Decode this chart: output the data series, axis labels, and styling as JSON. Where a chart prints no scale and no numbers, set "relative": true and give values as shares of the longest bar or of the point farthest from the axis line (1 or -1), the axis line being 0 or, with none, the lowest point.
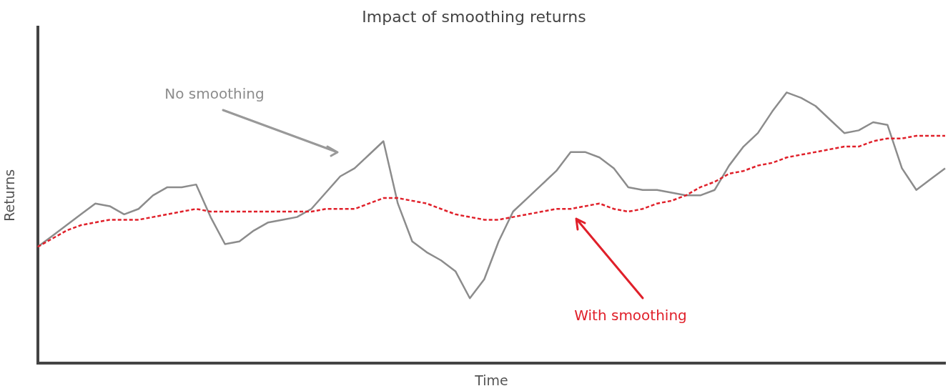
{
  "chart_data": {
    "type": "line",
    "title": "Impact of smoothing returns",
    "xlabel": "Time",
    "ylabel": "Returns",
    "relative": true,
    "legend": false,
    "grid": false,
    "marker": "none",
    "categories": [
      null,
      null,
      null,
      null,
      null,
      null,
      null,
      null,
      null,
      null,
      null,
      null,
      null,
      null,
      null,
      null,
      null,
      null,
      null,
      null,
      null,
      null,
      null,
      null,
      null,
      null,
      null,
      null,
      null,
      null,
      null,
      null,
      null,
      null,
      null,
      null,
      null,
      null,
      null,
      null,
      null,
      null,
      null,
      null,
      null,
      null,
      null,
      null,
      null,
      null,
      null,
      null,
      null,
      null,
      null,
      null,
      null,
      null,
      null,
      null,
      null,
      null,
      null,
      null
    ],
    "series": [
      {
        "name": "No smoothing",
        "color": "#8c8c8c",
        "line_style": "solid",
        "values": [
          0.43,
          0.47,
          0.51,
          0.55,
          0.59,
          0.58,
          0.55,
          0.57,
          0.62,
          0.65,
          0.65,
          0.66,
          0.54,
          0.44,
          0.45,
          0.49,
          0.52,
          0.53,
          0.54,
          0.57,
          0.63,
          0.69,
          0.72,
          0.77,
          0.82,
          0.59,
          0.45,
          0.41,
          0.38,
          0.34,
          0.24,
          0.31,
          0.45,
          0.56,
          0.61,
          0.66,
          0.71,
          0.78,
          0.78,
          0.76,
          0.72,
          0.65,
          0.64,
          0.64,
          0.63,
          0.62,
          0.62,
          0.64,
          0.73,
          0.8,
          0.85,
          0.93,
          1.0,
          0.98,
          0.95,
          0.9,
          0.85,
          0.86,
          0.89,
          0.88,
          0.72,
          0.64,
          0.68,
          0.72
        ]
      },
      {
        "name": "With smoothing",
        "color": "#e0202a",
        "line_style": "dashed",
        "values": [
          0.43,
          0.46,
          0.49,
          0.51,
          0.52,
          0.53,
          0.53,
          0.53,
          0.54,
          0.55,
          0.56,
          0.57,
          0.56,
          0.56,
          0.56,
          0.56,
          0.56,
          0.56,
          0.56,
          0.56,
          0.57,
          0.57,
          0.57,
          0.59,
          0.61,
          0.61,
          0.6,
          0.59,
          0.57,
          0.55,
          0.54,
          0.53,
          0.53,
          0.54,
          0.55,
          0.56,
          0.57,
          0.57,
          0.58,
          0.59,
          0.57,
          0.56,
          0.57,
          0.59,
          0.6,
          0.62,
          0.65,
          0.67,
          0.7,
          0.71,
          0.73,
          0.74,
          0.76,
          0.77,
          0.78,
          0.79,
          0.8,
          0.8,
          0.82,
          0.83,
          0.83,
          0.84,
          0.84,
          0.84
        ]
      }
    ]
  }
}
